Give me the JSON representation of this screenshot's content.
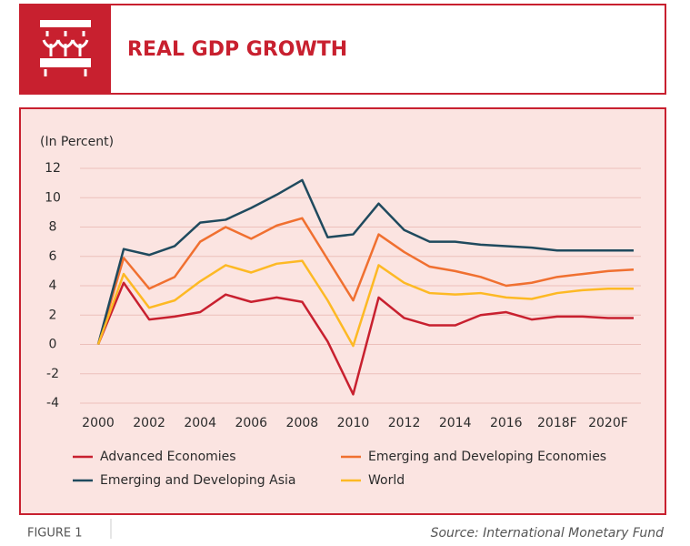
{
  "chart_data": {
    "type": "line",
    "title": "REAL GDP GROWTH",
    "ylabel": "(In Percent)",
    "figure_label": "FIGURE 1",
    "source": "Source: International Monetary Fund",
    "x": [
      2000,
      2001,
      2002,
      2003,
      2004,
      2005,
      2006,
      2007,
      2008,
      2009,
      2010,
      2011,
      2012,
      2013,
      2014,
      2015,
      2016,
      2017,
      2018,
      2019,
      2020,
      2021
    ],
    "xlim": [
      2000,
      2021
    ],
    "xticks": [
      2000,
      2002,
      2004,
      2006,
      2008,
      2010,
      2012,
      2014,
      2016,
      {
        "value": 2018,
        "label": "2018F"
      },
      {
        "value": 2020,
        "label": "2020F"
      }
    ],
    "ylim": [
      -4,
      12
    ],
    "yticks": [
      -4,
      -2,
      0,
      2,
      4,
      6,
      8,
      10,
      12
    ],
    "grid": true,
    "series": [
      {
        "name": "Advanced Economies",
        "color": "#c8202f",
        "values": [
          0,
          4.2,
          1.7,
          1.9,
          2.2,
          3.4,
          2.9,
          3.2,
          2.9,
          0.2,
          -3.4,
          3.2,
          1.8,
          1.3,
          1.3,
          2.0,
          2.2,
          1.7,
          1.9,
          1.9,
          1.8,
          1.8
        ]
      },
      {
        "name": "Emerging and Developing Economies",
        "color": "#f07030",
        "values": [
          0,
          5.9,
          3.8,
          4.6,
          7.0,
          8.0,
          7.2,
          8.1,
          8.6,
          5.8,
          3.0,
          7.5,
          6.3,
          5.3,
          5.0,
          4.6,
          4.0,
          4.2,
          4.6,
          4.8,
          5.0,
          5.1
        ]
      },
      {
        "name": "Emerging and Developing Asia",
        "color": "#1f4a5e",
        "values": [
          0,
          6.5,
          6.1,
          6.7,
          8.3,
          8.5,
          9.3,
          10.2,
          11.2,
          7.3,
          7.5,
          9.6,
          7.8,
          7.0,
          7.0,
          6.8,
          6.7,
          6.6,
          6.4,
          6.4,
          6.4,
          6.4
        ]
      },
      {
        "name": "World",
        "color": "#fdb924",
        "values": [
          0,
          4.8,
          2.5,
          3.0,
          4.3,
          5.4,
          4.9,
          5.5,
          5.7,
          3.0,
          -0.1,
          5.4,
          4.2,
          3.5,
          3.4,
          3.5,
          3.2,
          3.1,
          3.5,
          3.7,
          3.8,
          3.8
        ]
      }
    ]
  }
}
